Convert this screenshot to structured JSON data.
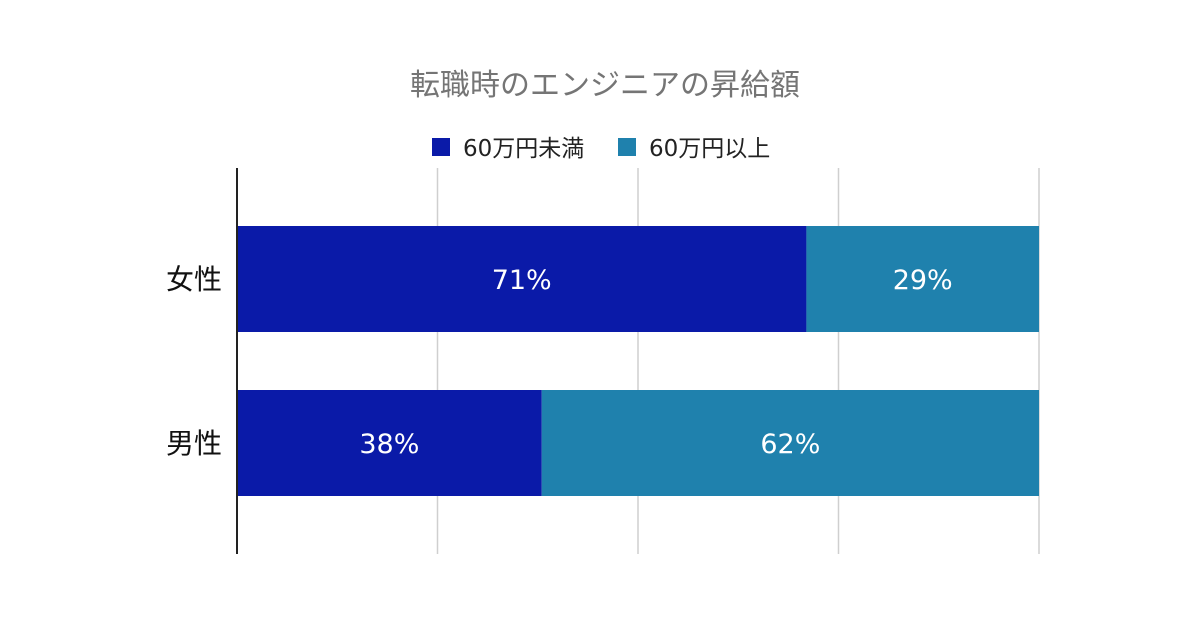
{
  "chart_data": {
    "type": "bar",
    "orientation": "horizontal",
    "stacked": true,
    "title": "転職時のエンジニアの昇給額",
    "categories": [
      "女性",
      "男性"
    ],
    "series": [
      {
        "name": "60万円未満",
        "values": [
          71,
          38
        ],
        "labels": [
          "71%",
          "38%"
        ],
        "color": "#0a1aa8"
      },
      {
        "name": "60万円以上",
        "values": [
          29,
          62
        ],
        "labels": [
          "29%",
          "62%"
        ],
        "color": "#1f81ad"
      }
    ],
    "xlim": [
      0,
      100
    ],
    "grid": true,
    "legend_position": "top"
  }
}
